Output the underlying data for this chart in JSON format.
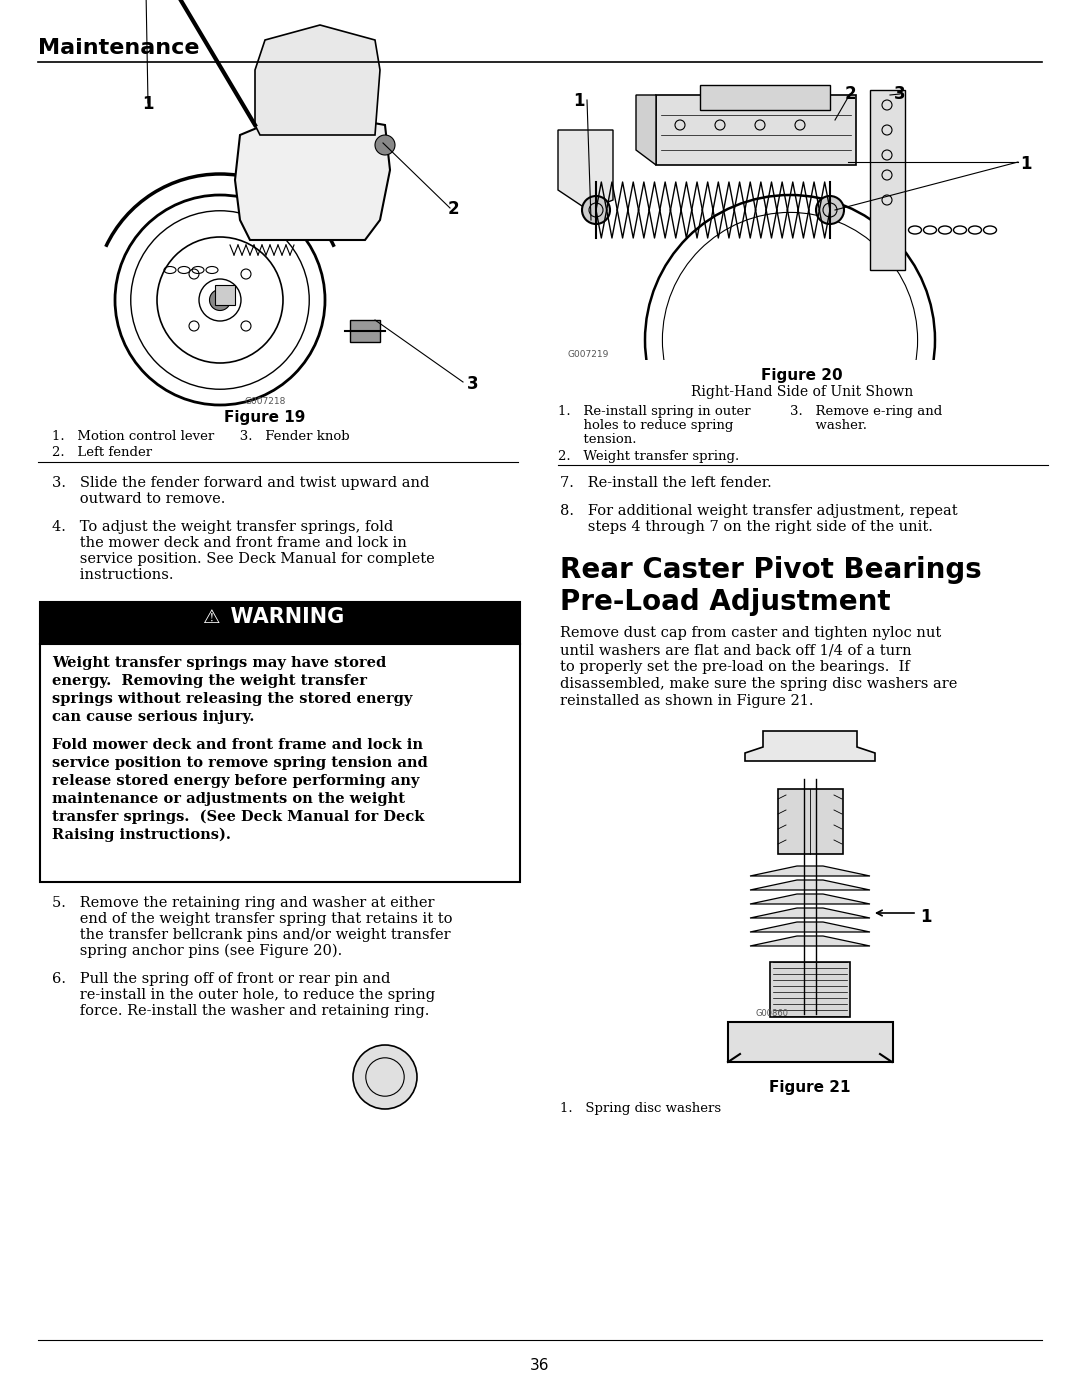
{
  "page_title": "Maintenance",
  "page_number": "36",
  "section_heading_line1": "Rear Caster Pivot Bearings",
  "section_heading_line2": "Pre-Load Adjustment",
  "figure19_caption": "Figure 19",
  "figure20_line1": "Figure 20",
  "figure20_line2": "Right-Hand Side of Unit Shown",
  "figure21_caption": "Figure 21",
  "fig19_item1": "1.   Motion control lever      3.   Fender knob",
  "fig19_item2": "2.   Left fender",
  "fig20_item1a": "1.   Re-install spring in outer",
  "fig20_item1b": "      holes to reduce spring",
  "fig20_item1c": "      tension.",
  "fig20_item3a": "3.   Remove e-ring and",
  "fig20_item3b": "      washer.",
  "fig20_item2": "2.   Weight transfer spring.",
  "fig21_item": "1.   Spring disc washers",
  "warning_title": "  WARNING",
  "warning_body1_lines": [
    "Weight transfer springs may have stored",
    "energy.  Removing the weight transfer",
    "springs without releasing the stored energy",
    "can cause serious injury."
  ],
  "warning_body2_lines": [
    "Fold mower deck and front frame and lock in",
    "service position to remove spring tension and",
    "release stored energy before performing any",
    "maintenance or adjustments on the weight",
    "transfer springs.  (See Deck Manual for Deck",
    "Raising instructions)."
  ],
  "step3_lines": [
    "3.   Slide the fender forward and twist upward and",
    "      outward to remove."
  ],
  "step4_lines": [
    "4.   To adjust the weight transfer springs, fold",
    "      the mower deck and front frame and lock in",
    "      service position. See Deck Manual for complete",
    "      instructions."
  ],
  "step5_lines": [
    "5.   Remove the retaining ring and washer at either",
    "      end of the weight transfer spring that retains it to",
    "      the transfer bellcrank pins and/or weight transfer",
    "      spring anchor pins (see Figure 20)."
  ],
  "step6_lines": [
    "6.   Pull the spring off of front or rear pin and",
    "      re-install in the outer hole, to reduce the spring",
    "      force. Re-install the washer and retaining ring."
  ],
  "step7_lines": [
    "7.   Re-install the left fender."
  ],
  "step8_lines": [
    "8.   For additional weight transfer adjustment, repeat",
    "      steps 4 through 7 on the right side of the unit."
  ],
  "preload_lines": [
    "Remove dust cap from caster and tighten nyloc nut",
    "until washers are flat and back off 1/4 of a turn",
    "to properly set the pre-load on the bearings.  If",
    "disassembled, make sure the spring disc washers are",
    "reinstalled as shown in Figure 21."
  ],
  "bg_color": "#ffffff"
}
